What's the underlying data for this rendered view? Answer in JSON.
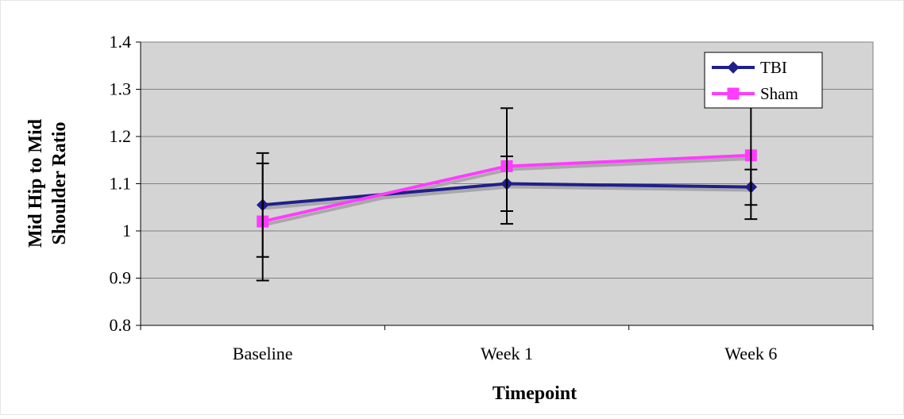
{
  "chart_data": {
    "type": "line",
    "title": "",
    "xlabel": "Timepoint",
    "ylabel_lines": [
      "Mid Hip to Mid",
      "Shoulder Ratio"
    ],
    "categories": [
      "Baseline",
      "Week 1",
      "Week 6"
    ],
    "ylim": [
      0.8,
      1.4
    ],
    "yticks": [
      0.8,
      0.9,
      1,
      1.1,
      1.2,
      1.3,
      1.4
    ],
    "ytick_labels": [
      "0.8",
      "0.9",
      "1",
      "1.1",
      "1.2",
      "1.3",
      "1.4"
    ],
    "grid": true,
    "legend_position": "top-right",
    "plot_background": "#d4d4d4",
    "series": [
      {
        "name": "TBI",
        "marker": "diamond",
        "color": "#1f1f8c",
        "values": [
          1.055,
          1.1,
          1.093
        ],
        "error_low": [
          0.945,
          1.042,
          1.055
        ],
        "error_high": [
          1.165,
          1.158,
          1.13
        ]
      },
      {
        "name": "Sham",
        "marker": "square",
        "color": "#ff3cff",
        "values": [
          1.02,
          1.137,
          1.16
        ],
        "error_low": [
          0.895,
          1.015,
          1.025
        ],
        "error_high": [
          1.143,
          1.26,
          1.295
        ]
      }
    ]
  }
}
